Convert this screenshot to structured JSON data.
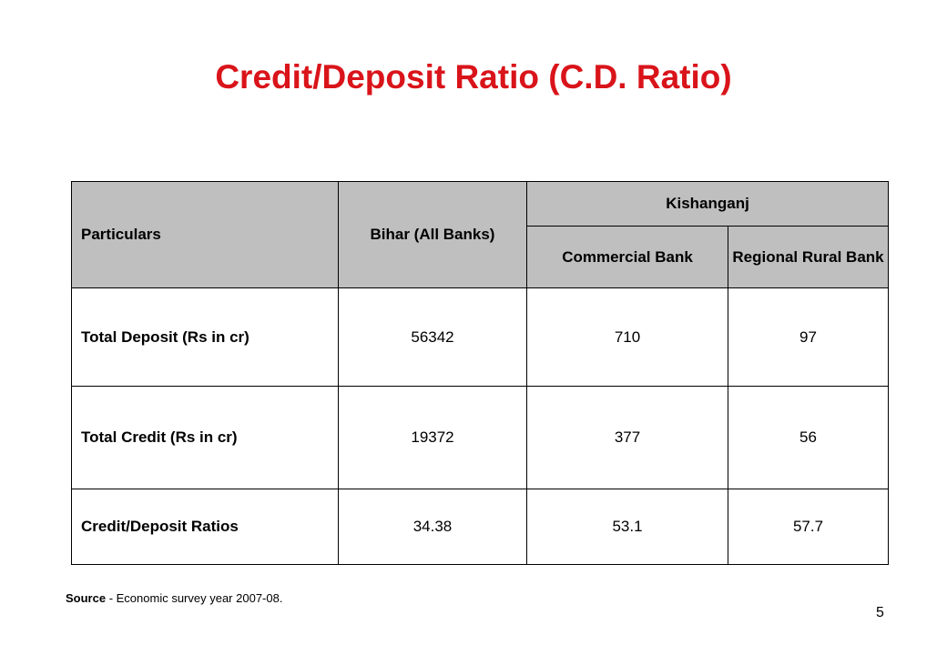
{
  "slide": {
    "title": "Credit/Deposit Ratio (C.D. Ratio)",
    "page_number": "5"
  },
  "table": {
    "headers": {
      "particulars": "Particulars",
      "bihar": "Bihar (All Banks)",
      "kishanganj": "Kishanganj",
      "commercial_bank": "Commercial Bank",
      "regional_rural_bank": "Regional Rural Bank"
    },
    "rows": [
      {
        "label": "Total Deposit (Rs in cr)",
        "bihar": "56342",
        "commercial": "710",
        "rrb": "97"
      },
      {
        "label": "Total Credit (Rs in cr)",
        "bihar": "19372",
        "commercial": "377",
        "rrb": "56"
      },
      {
        "label": "Credit/Deposit Ratios",
        "bihar": "34.38",
        "commercial": "53.1",
        "rrb": "57.7"
      }
    ]
  },
  "source": {
    "label": "Source",
    "text": " - Economic survey year 2007-08."
  },
  "colors": {
    "title": "#d9141a",
    "header_background": "#bfbfbf"
  }
}
